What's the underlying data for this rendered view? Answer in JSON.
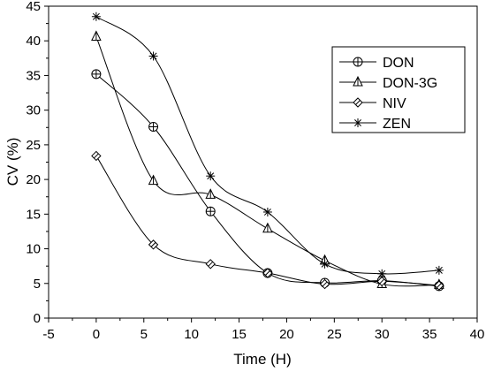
{
  "chart_data": {
    "type": "line",
    "title": "",
    "xlabel": "Time (H)",
    "ylabel": "CV (%)",
    "xlim": [
      -5,
      40
    ],
    "ylim": [
      0,
      45
    ],
    "xticks": [
      -5,
      0,
      5,
      10,
      15,
      20,
      25,
      30,
      35,
      40
    ],
    "yticks": [
      0,
      5,
      10,
      15,
      20,
      25,
      30,
      35,
      40,
      45
    ],
    "grid": false,
    "legend_position": "top-right",
    "series": [
      {
        "name": "DON",
        "marker": "circle-plus",
        "x": [
          0,
          6,
          12,
          18,
          24,
          30,
          36
        ],
        "y": [
          35.2,
          27.6,
          15.4,
          6.5,
          5.1,
          5.4,
          4.6
        ]
      },
      {
        "name": "DON-3G",
        "marker": "triangle",
        "x": [
          0,
          6,
          12,
          18,
          24,
          30,
          36
        ],
        "y": [
          40.6,
          19.8,
          17.8,
          12.9,
          8.3,
          4.9,
          4.8
        ]
      },
      {
        "name": "NIV",
        "marker": "diamond",
        "x": [
          0,
          6,
          12,
          18,
          24,
          30,
          36
        ],
        "y": [
          23.4,
          10.6,
          7.8,
          6.5,
          4.9,
          5.3,
          4.7
        ]
      },
      {
        "name": "ZEN",
        "marker": "asterisk",
        "x": [
          0,
          6,
          12,
          18,
          24,
          30,
          36
        ],
        "y": [
          43.5,
          37.8,
          20.5,
          15.3,
          7.8,
          6.4,
          6.9
        ]
      }
    ]
  }
}
